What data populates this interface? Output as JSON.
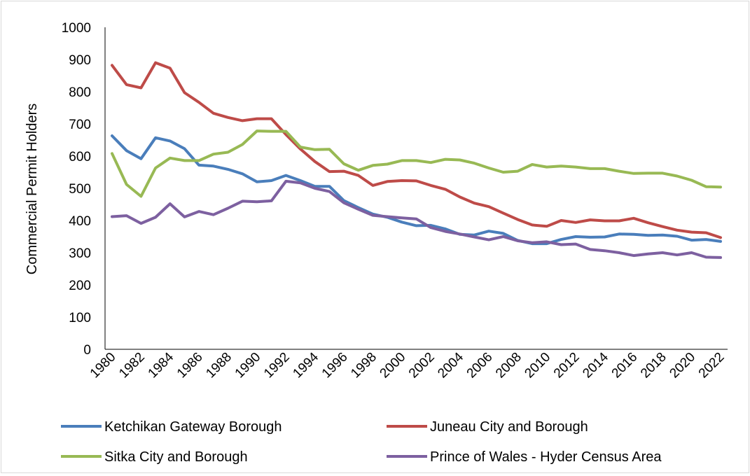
{
  "chart_data": {
    "type": "line",
    "ylabel": "Commercial Permit Holders",
    "xlabel": "",
    "ylim": [
      0,
      1000
    ],
    "yticks": [
      0,
      100,
      200,
      300,
      400,
      500,
      600,
      700,
      800,
      900,
      1000
    ],
    "x": [
      1980,
      1981,
      1982,
      1983,
      1984,
      1985,
      1986,
      1987,
      1988,
      1989,
      1990,
      1991,
      1992,
      1993,
      1994,
      1995,
      1996,
      1997,
      1998,
      1999,
      2000,
      2001,
      2002,
      2003,
      2004,
      2005,
      2006,
      2007,
      2008,
      2009,
      2010,
      2011,
      2012,
      2013,
      2014,
      2015,
      2016,
      2017,
      2018,
      2019,
      2020,
      2021,
      2022
    ],
    "xtick_labels": [
      "1980",
      "1982",
      "1984",
      "1986",
      "1988",
      "1990",
      "1992",
      "1994",
      "1996",
      "1998",
      "2000",
      "2002",
      "2004",
      "2006",
      "2008",
      "2010",
      "2012",
      "2014",
      "2016",
      "2018",
      "2020",
      "2022"
    ],
    "grid": false,
    "legend_position": "bottom",
    "series": [
      {
        "name": "Ketchikan Gateway Borough",
        "color": "#4a7ebb",
        "values": [
          663,
          617,
          592,
          657,
          647,
          623,
          572,
          569,
          559,
          545,
          520,
          524,
          540,
          524,
          506,
          506,
          462,
          440,
          420,
          410,
          395,
          384,
          385,
          374,
          357,
          355,
          367,
          360,
          338,
          328,
          328,
          341,
          350,
          348,
          349,
          358,
          357,
          354,
          355,
          351,
          339,
          341,
          335
        ]
      },
      {
        "name": "Juneau City and Borough",
        "color": "#be4b48",
        "values": [
          882,
          822,
          812,
          890,
          873,
          797,
          767,
          733,
          720,
          710,
          716,
          716,
          667,
          622,
          583,
          552,
          553,
          540,
          509,
          521,
          524,
          523,
          509,
          497,
          473,
          454,
          443,
          423,
          403,
          386,
          382,
          400,
          394,
          402,
          399,
          399,
          407,
          393,
          381,
          370,
          364,
          362,
          347
        ]
      },
      {
        "name": "Sitka City and Borough",
        "color": "#98b954",
        "values": [
          608,
          512,
          475,
          563,
          594,
          586,
          586,
          606,
          612,
          636,
          678,
          677,
          677,
          628,
          620,
          621,
          576,
          556,
          571,
          575,
          586,
          586,
          580,
          590,
          588,
          578,
          563,
          550,
          553,
          574,
          566,
          569,
          566,
          561,
          561,
          553,
          546,
          547,
          547,
          538,
          525,
          505,
          504
        ]
      },
      {
        "name": "Prince of Wales - Hyder Census Area",
        "color": "#7d60a0",
        "values": [
          412,
          415,
          391,
          410,
          452,
          411,
          428,
          418,
          438,
          460,
          458,
          461,
          522,
          517,
          500,
          490,
          455,
          435,
          416,
          412,
          408,
          405,
          378,
          366,
          358,
          349,
          340,
          350,
          337,
          331,
          334,
          325,
          327,
          310,
          306,
          300,
          291,
          296,
          300,
          293,
          300,
          286,
          285
        ]
      }
    ]
  }
}
